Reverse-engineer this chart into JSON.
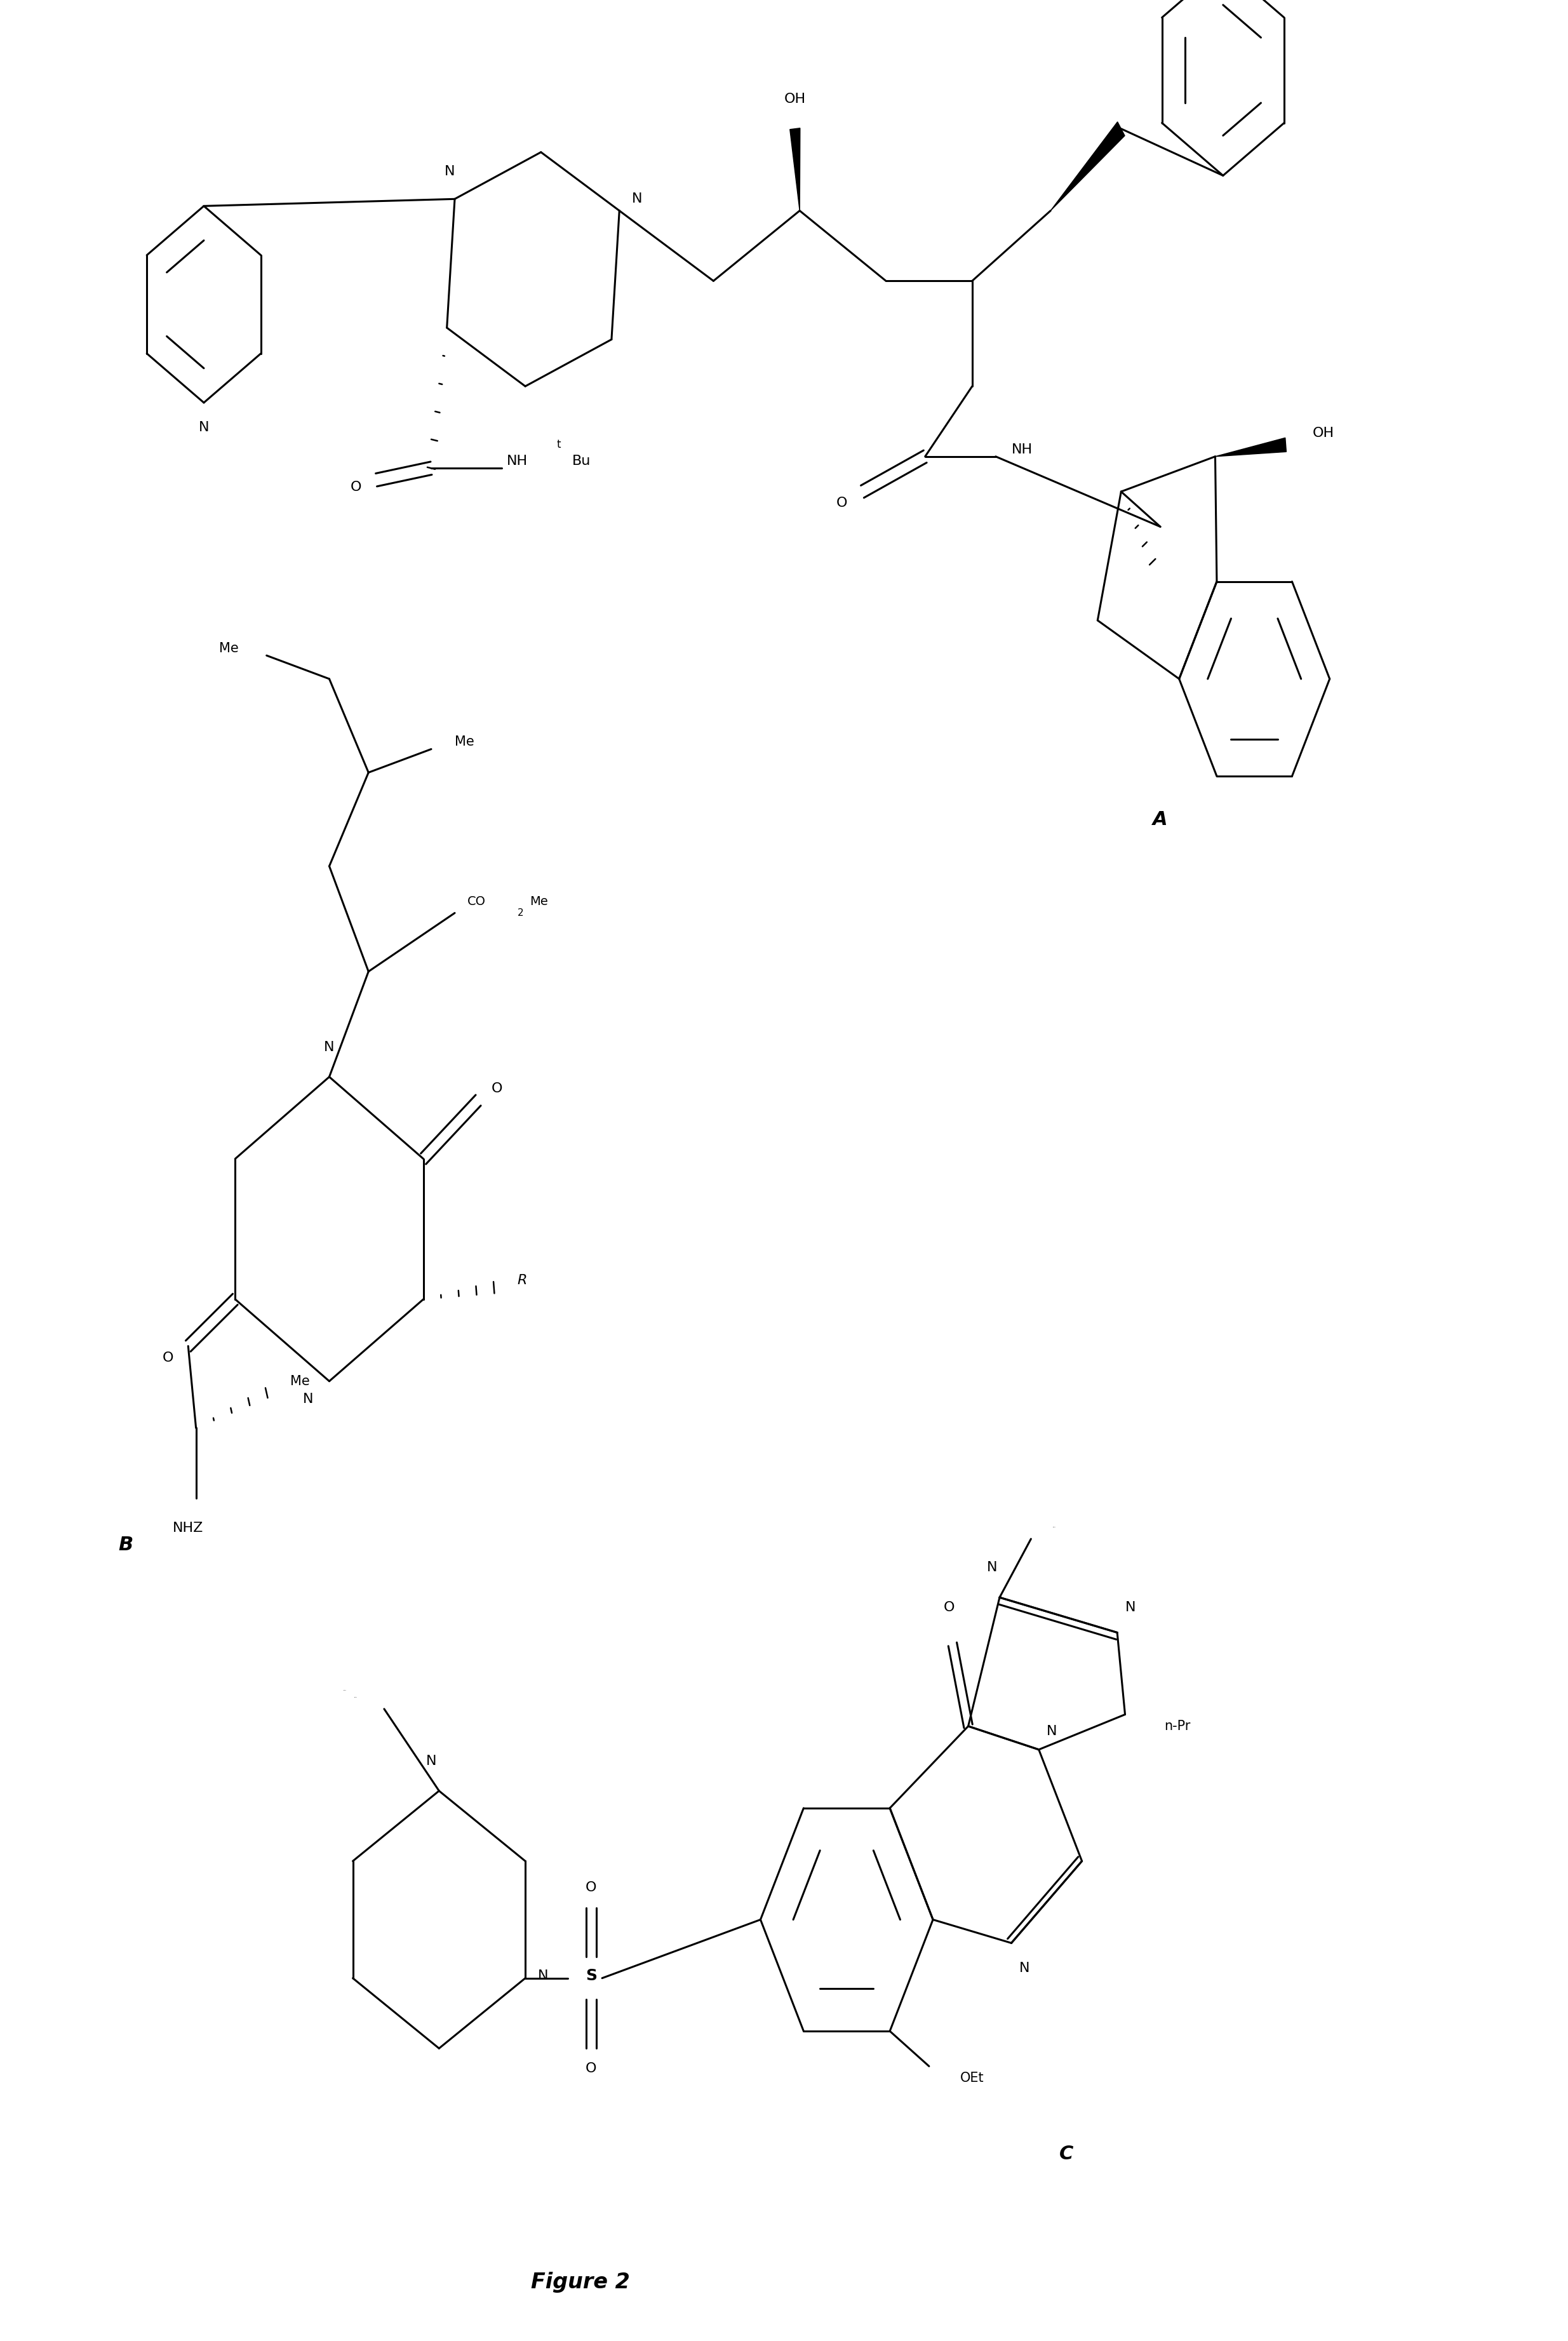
{
  "bg": "#ffffff",
  "label_A": "A",
  "label_B": "B",
  "label_C": "C",
  "figure_label": "Figure 2",
  "lw": 2.2,
  "lw_bold": 5.0,
  "fs": 16,
  "fs_small": 12,
  "fs_super": 10,
  "fs_label": 22
}
